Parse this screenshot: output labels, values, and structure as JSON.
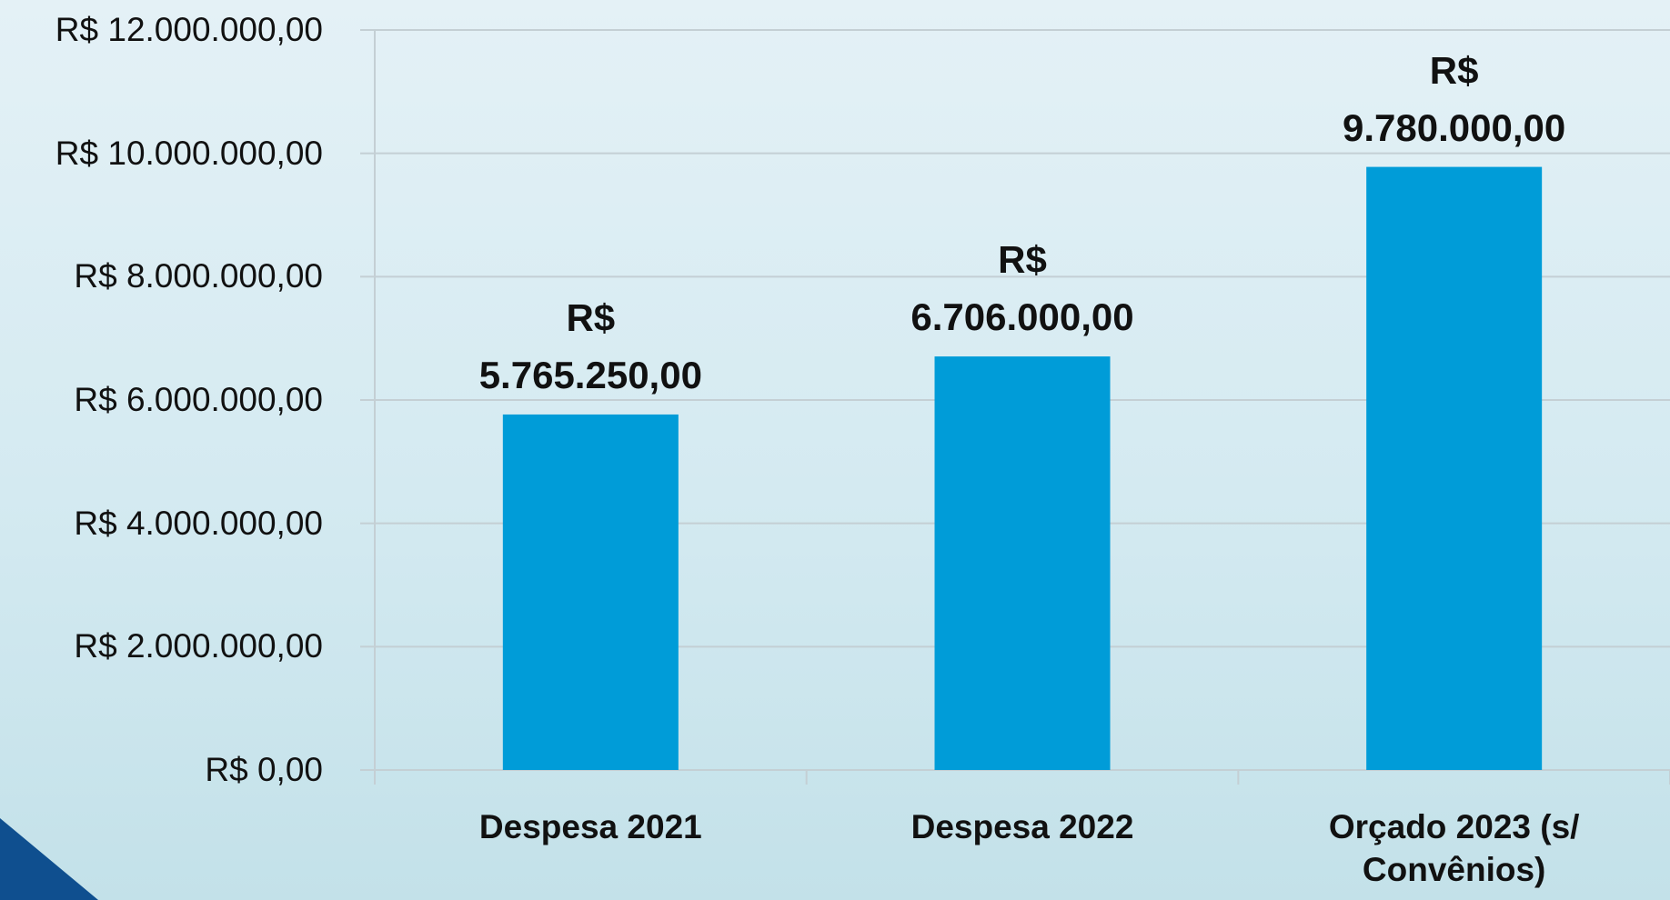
{
  "chart_data": {
    "type": "bar",
    "categories": [
      "Despesa 2021",
      "Despesa 2022",
      "Orçado 2023 (s/ Convênios)"
    ],
    "values": [
      5765250,
      6706000,
      9780000
    ],
    "value_labels": [
      "R$ 5.765.250,00",
      "R$ 6.706.000,00",
      "R$ 9.780.000,00"
    ],
    "color": "#009cd8",
    "ylim": [
      0,
      12000000
    ],
    "yticks": [
      {
        "value": 0,
        "label": "R$ 0,00"
      },
      {
        "value": 2000000,
        "label": "R$ 2.000.000,00"
      },
      {
        "value": 4000000,
        "label": "R$ 4.000.000,00"
      },
      {
        "value": 6000000,
        "label": "R$ 6.000.000,00"
      },
      {
        "value": 8000000,
        "label": "R$ 8.000.000,00"
      },
      {
        "value": 10000000,
        "label": "R$ 10.000.000,00"
      },
      {
        "value": 12000000,
        "label": "R$ 12.000.000,00"
      }
    ],
    "grid": true
  }
}
